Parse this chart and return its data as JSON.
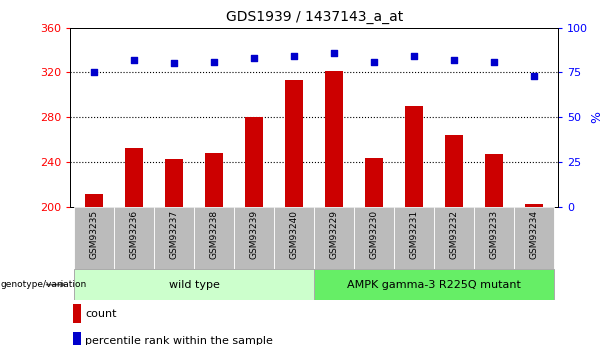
{
  "title": "GDS1939 / 1437143_a_at",
  "categories": [
    "GSM93235",
    "GSM93236",
    "GSM93237",
    "GSM93238",
    "GSM93239",
    "GSM93240",
    "GSM93229",
    "GSM93230",
    "GSM93231",
    "GSM93232",
    "GSM93233",
    "GSM93234"
  ],
  "counts": [
    212,
    253,
    243,
    248,
    280,
    313,
    321,
    244,
    290,
    264,
    247,
    203
  ],
  "percentiles": [
    75,
    82,
    80,
    81,
    83,
    84,
    86,
    81,
    84,
    82,
    81,
    73
  ],
  "ylim_left": [
    200,
    360
  ],
  "ylim_right": [
    0,
    100
  ],
  "yticks_left": [
    200,
    240,
    280,
    320,
    360
  ],
  "yticks_right": [
    0,
    25,
    50,
    75,
    100
  ],
  "bar_color": "#cc0000",
  "dot_color": "#0000cc",
  "bg_color": "#ffffff",
  "tick_area_color": "#bbbbbb",
  "wild_type_color": "#ccffcc",
  "mutant_color": "#66ee66",
  "wild_type_label": "wild type",
  "mutant_label": "AMPK gamma-3 R225Q mutant",
  "wild_type_count": 6,
  "mutant_count": 6,
  "legend_count_label": "count",
  "legend_pct_label": "percentile rank within the sample",
  "genotype_label": "genotype/variation",
  "right_yaxis_label": "%",
  "bar_width": 0.45
}
